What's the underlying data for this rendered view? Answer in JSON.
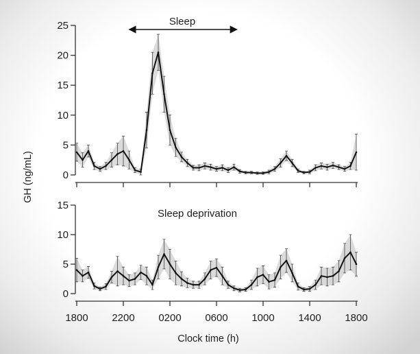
{
  "chart_data": [
    {
      "type": "line",
      "x": [
        "1800",
        "1830",
        "1900",
        "1930",
        "2000",
        "2030",
        "2100",
        "2130",
        "2200",
        "2230",
        "2300",
        "2330",
        "0000",
        "0030",
        "0100",
        "0130",
        "0200",
        "0230",
        "0300",
        "0330",
        "0400",
        "0430",
        "0500",
        "0530",
        "0600",
        "0630",
        "0700",
        "0730",
        "0800",
        "0830",
        "0900",
        "0930",
        "1000",
        "1030",
        "1100",
        "1130",
        "1200",
        "1230",
        "1300",
        "1330",
        "1400",
        "1430",
        "1500",
        "1530",
        "1600",
        "1630",
        "1700",
        "1730",
        "1800"
      ],
      "series": [
        {
          "values": [
            3.8,
            2.5,
            4.0,
            1.5,
            1.0,
            1.5,
            2.5,
            3.5,
            4.0,
            2.5,
            0.8,
            0.5,
            7.5,
            17.0,
            20.5,
            13.5,
            7.5,
            4.6,
            3.0,
            2.0,
            1.2,
            1.2,
            1.5,
            1.3,
            1.0,
            1.2,
            0.8,
            1.3,
            0.6,
            0.4,
            0.4,
            0.3,
            0.3,
            0.5,
            1.0,
            2.0,
            3.2,
            2.0,
            0.7,
            0.4,
            0.5,
            1.2,
            1.5,
            1.3,
            1.6,
            1.3,
            1.0,
            1.5,
            3.8
          ],
          "error": [
            1.5,
            1.2,
            1.0,
            0.6,
            0.4,
            0.6,
            1.2,
            1.8,
            2.5,
            1.5,
            0.4,
            0.5,
            3.0,
            3.5,
            3.0,
            3.0,
            2.5,
            1.5,
            0.8,
            0.6,
            0.4,
            0.5,
            0.5,
            0.5,
            0.4,
            0.5,
            0.4,
            0.5,
            0.3,
            0.2,
            0.2,
            0.2,
            0.2,
            0.3,
            0.4,
            0.7,
            0.8,
            0.6,
            0.3,
            0.2,
            0.3,
            0.5,
            0.5,
            0.5,
            0.5,
            0.4,
            0.4,
            0.6,
            3.0
          ]
        }
      ],
      "ylim": [
        0,
        25
      ],
      "yticks": [
        0,
        5,
        10,
        15,
        20,
        25
      ],
      "xticks": [
        "1800",
        "2200",
        "0200",
        "0600",
        "1000",
        "1400",
        "1800"
      ],
      "show_xtick_labels": false,
      "error_bars": true,
      "grid": false,
      "ylabel": "GH (ng/mL)",
      "xlabel": "",
      "annotation": {
        "text": "Sleep",
        "arrow_from": "2230",
        "arrow_to": "0745"
      }
    },
    {
      "type": "line",
      "x": [
        "1800",
        "1830",
        "1900",
        "1930",
        "2000",
        "2030",
        "2100",
        "2130",
        "2200",
        "2230",
        "2300",
        "2330",
        "0000",
        "0030",
        "0100",
        "0130",
        "0200",
        "0230",
        "0300",
        "0330",
        "0400",
        "0430",
        "0500",
        "0530",
        "0600",
        "0630",
        "0700",
        "0730",
        "0800",
        "0830",
        "0900",
        "0930",
        "1000",
        "1030",
        "1100",
        "1130",
        "1200",
        "1230",
        "1300",
        "1330",
        "1400",
        "1430",
        "1500",
        "1530",
        "1600",
        "1630",
        "1700",
        "1730",
        "1800"
      ],
      "series": [
        {
          "values": [
            4.0,
            3.0,
            3.6,
            1.3,
            0.8,
            1.2,
            2.8,
            3.8,
            3.0,
            2.2,
            2.5,
            3.6,
            3.0,
            1.5,
            4.5,
            6.7,
            5.0,
            3.5,
            2.5,
            1.8,
            1.5,
            1.5,
            2.5,
            4.0,
            4.4,
            3.0,
            1.5,
            0.9,
            0.6,
            0.7,
            1.5,
            2.8,
            3.2,
            2.0,
            2.3,
            4.5,
            5.6,
            3.5,
            1.2,
            0.7,
            0.8,
            1.5,
            3.0,
            2.8,
            3.0,
            3.8,
            6.0,
            7.0,
            5.0
          ],
          "error": [
            2.0,
            1.0,
            1.0,
            0.5,
            0.3,
            0.5,
            1.0,
            2.5,
            1.5,
            1.0,
            1.0,
            1.2,
            1.5,
            0.8,
            2.0,
            2.5,
            2.5,
            2.0,
            1.2,
            0.8,
            0.6,
            0.6,
            1.0,
            1.5,
            1.5,
            1.5,
            0.6,
            0.4,
            0.3,
            0.3,
            0.8,
            1.5,
            1.5,
            1.2,
            1.2,
            2.0,
            2.0,
            1.5,
            0.6,
            0.3,
            0.4,
            0.8,
            1.5,
            1.5,
            1.5,
            1.8,
            2.5,
            3.0,
            2.0
          ]
        }
      ],
      "ylim": [
        0,
        15
      ],
      "yticks": [
        0,
        5,
        10,
        15
      ],
      "xticks": [
        "1800",
        "2200",
        "0200",
        "0600",
        "1000",
        "1400",
        "1800"
      ],
      "show_xtick_labels": true,
      "error_bars": true,
      "grid": false,
      "ylabel": "",
      "xlabel": "Clock time (h)",
      "annotation": {
        "text": "Sleep deprivation"
      }
    }
  ]
}
